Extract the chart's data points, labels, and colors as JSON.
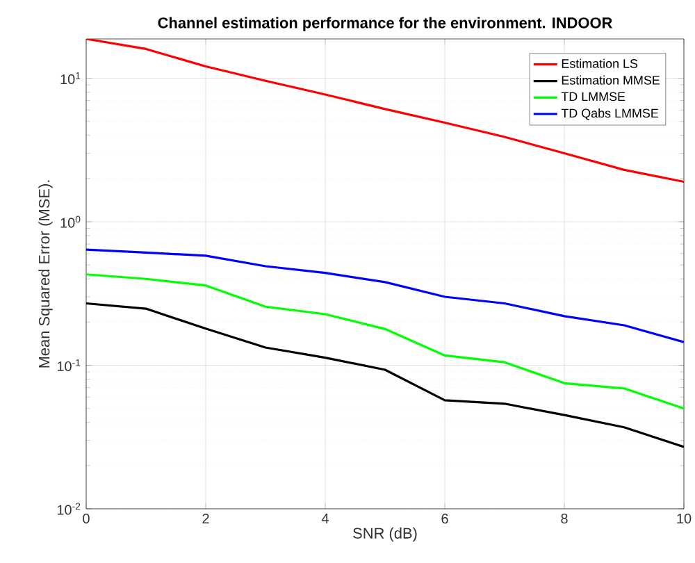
{
  "chart_data": {
    "type": "line",
    "title": "Channel estimation performance for the environment. INDOOR",
    "xlabel": "SNR (dB)",
    "ylabel": "Mean Squared Error (MSE).",
    "x": [
      0,
      1,
      2,
      3,
      4,
      5,
      6,
      7,
      8,
      9,
      10
    ],
    "series": [
      {
        "name": "Estimation LS",
        "color": "#ff0000",
        "values": [
          18.8,
          16.0,
          12.1,
          9.6,
          7.7,
          6.1,
          4.9,
          3.9,
          3.0,
          2.3,
          1.9
        ]
      },
      {
        "name": "Estimation MMSE",
        "color": "#000000",
        "values": [
          0.27,
          0.248,
          0.18,
          0.133,
          0.113,
          0.093,
          0.057,
          0.054,
          0.045,
          0.037,
          0.027
        ]
      },
      {
        "name": "TD LMMSE",
        "color": "#00ff00",
        "values": [
          0.43,
          0.4,
          0.36,
          0.256,
          0.227,
          0.179,
          0.117,
          0.105,
          0.075,
          0.069,
          0.05
        ]
      },
      {
        "name": "TD Qabs LMMSE",
        "color": "#0000ff",
        "values": [
          0.64,
          0.61,
          0.58,
          0.49,
          0.44,
          0.38,
          0.3,
          0.27,
          0.22,
          0.19,
          0.145
        ]
      }
    ],
    "log": "y",
    "xlim": [
      0,
      10
    ],
    "ylim": [
      0.01,
      18.8
    ],
    "xticks": [
      0,
      2,
      4,
      6,
      8,
      10
    ],
    "yticks": [
      {
        "value": 0.01,
        "label": "10$^{-2}$"
      },
      {
        "value": 0.1,
        "label": "10$^{-1}$"
      },
      {
        "value": 1,
        "label": "10$^{0}$"
      },
      {
        "value": 10,
        "label": "10$^{1}$"
      }
    ],
    "grid": true,
    "legend": "top right",
    "marker": "none",
    "line_style": "solid"
  }
}
